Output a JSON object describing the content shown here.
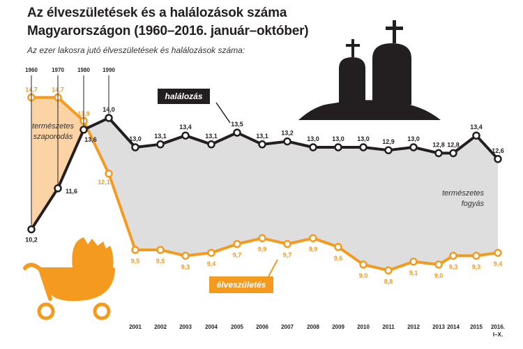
{
  "header": {
    "title_line1": "Az élveszületések és a halálozások száma",
    "title_line2": "Magyarországon (1960–2016. január–október)",
    "subtitle": "Az ezer lakosra jutó élveszületések és halálozások száma:"
  },
  "colors": {
    "births": "#f39a1f",
    "deaths": "#231f20",
    "fill_increase": "#fbd3a5",
    "fill_decrease": "#dedede",
    "title": "#231f20"
  },
  "icons": [
    "pram-icon",
    "gravestones-icon"
  ],
  "chart_data": {
    "type": "line",
    "x": [
      "1960",
      "1970",
      "1980",
      "1990",
      "2001",
      "2002",
      "2003",
      "2004",
      "2005",
      "2006",
      "2007",
      "2008",
      "2009",
      "2010",
      "2011",
      "2012",
      "2013",
      "2014",
      "2015",
      "2016. I–X."
    ],
    "series": [
      {
        "name": "élveszületés",
        "values": [
          14.7,
          14.7,
          13.9,
          12.1,
          9.5,
          9.5,
          9.3,
          9.4,
          9.7,
          9.9,
          9.7,
          9.9,
          9.6,
          9.0,
          8.8,
          9.1,
          9.0,
          9.3,
          9.3,
          9.4
        ],
        "labels": [
          "14,7",
          "14,7",
          "13,9",
          "12,1",
          "9,5",
          "9,5",
          "9,3",
          "9,4",
          "9,7",
          "9,9",
          "9,7",
          "9,9",
          "9,6",
          "9,0",
          "8,8",
          "9,1",
          "9,0",
          "9,3",
          "9,3",
          "9,4"
        ]
      },
      {
        "name": "halálozás",
        "values": [
          10.2,
          11.6,
          13.6,
          14.0,
          13.0,
          13.1,
          13.4,
          13.1,
          13.5,
          13.1,
          13.2,
          13.0,
          13.0,
          13.0,
          12.9,
          13.0,
          12.8,
          12.8,
          13.4,
          12.6
        ],
        "labels": [
          "10,2",
          "11,6",
          "13,6",
          "14,0",
          "13,0",
          "13,1",
          "13,4",
          "13,1",
          "13,5",
          "13,1",
          "13,2",
          "13,0",
          "13,0",
          "13,0",
          "12,9",
          "13,0",
          "12,8",
          "12,8",
          "13,4",
          "12,6"
        ]
      }
    ],
    "annotations": {
      "increase_line1": "természetes",
      "increase_line2": "szaporodás",
      "decrease_line1": "természetes",
      "decrease_line2": "fogyás"
    },
    "x_tick_last_line1": "2016.",
    "x_tick_last_line2": "I–X.",
    "grid": false,
    "legend": "inline"
  }
}
